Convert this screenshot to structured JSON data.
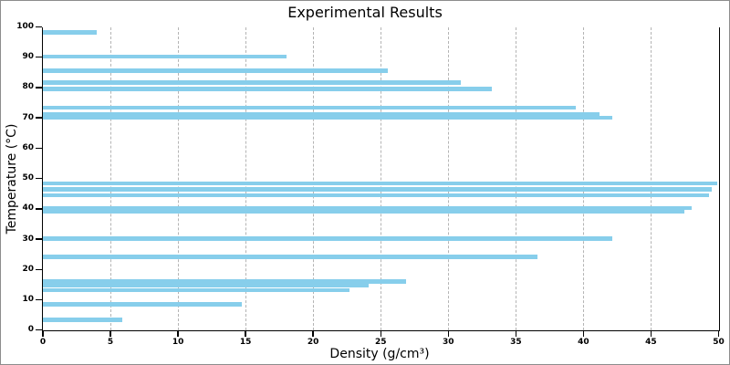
{
  "window": {
    "background_color": "#ffffff",
    "border_color": "#8d8d8d"
  },
  "chart_data": {
    "type": "bar",
    "orientation": "horizontal",
    "title": "Experimental Results",
    "xlabel": "Density (g/cm³)",
    "ylabel": "Temperature (°C)",
    "xlim": [
      0,
      50
    ],
    "ylim": [
      0,
      100
    ],
    "xticks": [
      0,
      5,
      10,
      15,
      20,
      25,
      30,
      35,
      40,
      45,
      50
    ],
    "yticks": [
      0,
      10,
      20,
      30,
      40,
      50,
      60,
      70,
      80,
      90,
      100
    ],
    "grid": "vertical-dashed-only",
    "legend": "none",
    "bar_color": "#87CEEB",
    "gridline_color": "#b4b4b4",
    "spines": [
      "left",
      "bottom",
      "right"
    ],
    "points": [
      {
        "temperature": 98.2,
        "density": 4.0
      },
      {
        "temperature": 90.2,
        "density": 18.0
      },
      {
        "temperature": 85.5,
        "density": 25.5
      },
      {
        "temperature": 81.6,
        "density": 30.9
      },
      {
        "temperature": 79.6,
        "density": 33.2
      },
      {
        "temperature": 73.4,
        "density": 39.4
      },
      {
        "temperature": 71.2,
        "density": 41.2
      },
      {
        "temperature": 70.1,
        "density": 42.1
      },
      {
        "temperature": 48.4,
        "density": 49.9
      },
      {
        "temperature": 46.5,
        "density": 49.5
      },
      {
        "temperature": 44.4,
        "density": 49.3
      },
      {
        "temperature": 40.3,
        "density": 48.0
      },
      {
        "temperature": 39.1,
        "density": 47.5
      },
      {
        "temperature": 30.2,
        "density": 42.1
      },
      {
        "temperature": 24.1,
        "density": 36.6
      },
      {
        "temperature": 16.0,
        "density": 26.9
      },
      {
        "temperature": 14.6,
        "density": 24.1
      },
      {
        "temperature": 13.2,
        "density": 22.7
      },
      {
        "temperature": 8.5,
        "density": 14.7
      },
      {
        "temperature": 3.3,
        "density": 5.9
      }
    ]
  }
}
